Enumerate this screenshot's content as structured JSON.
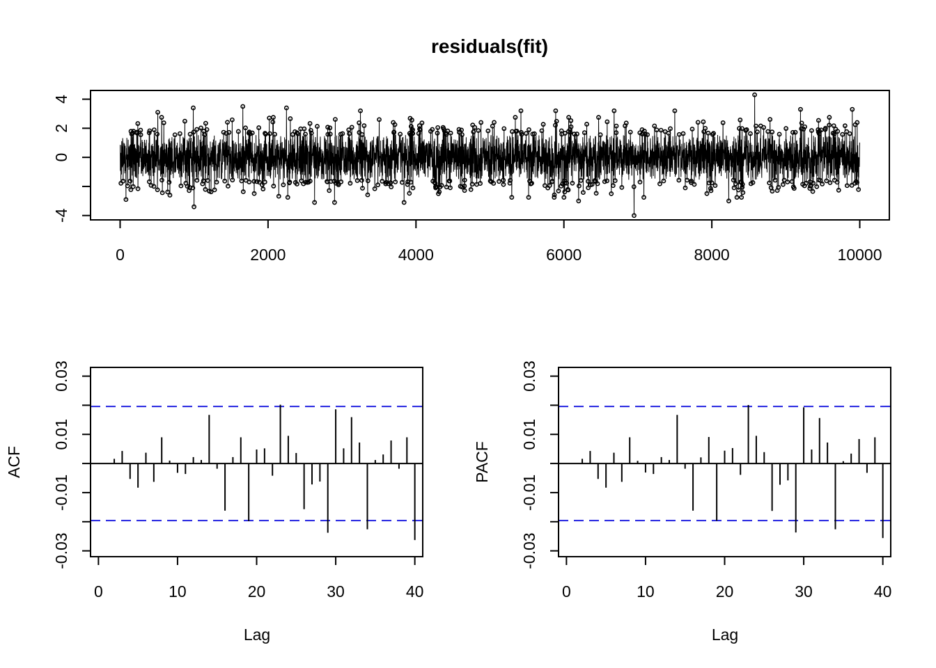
{
  "chart_data": [
    {
      "type": "line",
      "title": "residuals(fit)",
      "xlabel": "",
      "ylabel": "",
      "x_ticks": [
        0,
        2000,
        4000,
        6000,
        8000,
        10000
      ],
      "y_ticks": [
        -4,
        -2,
        0,
        2,
        4
      ],
      "y_tick_labels": [
        "-4",
        "",
        "0",
        "2",
        "4"
      ],
      "xlim": [
        -400,
        10400
      ],
      "ylim": [
        -4.3,
        4.6
      ],
      "n": 10000,
      "summary": "residual series of 10000 points fluctuating around 0, mostly within about -2.5 to 2.5",
      "extremes": [
        {
          "x": 80,
          "y": -2.9
        },
        {
          "x": 510,
          "y": 3.1
        },
        {
          "x": 990,
          "y": 3.4
        },
        {
          "x": 1000,
          "y": -3.4
        },
        {
          "x": 1660,
          "y": 3.5
        },
        {
          "x": 2250,
          "y": 3.4
        },
        {
          "x": 2630,
          "y": -3.1
        },
        {
          "x": 2900,
          "y": -3.1
        },
        {
          "x": 3250,
          "y": 3.2
        },
        {
          "x": 3840,
          "y": -3.1
        },
        {
          "x": 5420,
          "y": 3.2
        },
        {
          "x": 5890,
          "y": 3.2
        },
        {
          "x": 6200,
          "y": -3.0
        },
        {
          "x": 6680,
          "y": 3.2
        },
        {
          "x": 6950,
          "y": -4.0
        },
        {
          "x": 7500,
          "y": 3.2
        },
        {
          "x": 8230,
          "y": -3.0
        },
        {
          "x": 8580,
          "y": 4.3
        },
        {
          "x": 9200,
          "y": 3.3
        },
        {
          "x": 9900,
          "y": 3.3
        }
      ]
    },
    {
      "type": "bar",
      "title": "",
      "xlabel": "Lag",
      "ylabel": "ACF",
      "x_ticks": [
        0,
        10,
        20,
        30,
        40
      ],
      "y_ticks": [
        -0.03,
        -0.02,
        -0.01,
        0,
        0.01,
        0.02,
        0.03
      ],
      "y_tick_labels": [
        "-0.03",
        "",
        "-0.01",
        "",
        "0.01",
        "",
        "0.03"
      ],
      "xlim": [
        -1,
        41
      ],
      "ylim": [
        -0.032,
        0.033
      ],
      "confidence_bounds": [
        -0.0196,
        0.0196
      ],
      "lags": [
        1,
        2,
        3,
        4,
        5,
        6,
        7,
        8,
        9,
        10,
        11,
        12,
        13,
        14,
        15,
        16,
        17,
        18,
        19,
        20,
        21,
        22,
        23,
        24,
        25,
        26,
        27,
        28,
        29,
        30,
        31,
        32,
        33,
        34,
        35,
        36,
        37,
        38,
        39,
        40
      ],
      "values": [
        0.0,
        0.0016,
        0.0043,
        -0.0053,
        -0.0083,
        0.0037,
        -0.0063,
        0.009,
        0.001,
        -0.0032,
        -0.0036,
        0.0022,
        0.0012,
        0.0167,
        -0.0018,
        -0.0162,
        0.0022,
        0.009,
        -0.0198,
        0.0048,
        0.0052,
        -0.0042,
        0.0202,
        0.0095,
        0.0036,
        -0.0157,
        -0.0072,
        -0.0062,
        -0.0238,
        0.0186,
        0.0052,
        0.0159,
        0.0072,
        -0.0226,
        0.0012,
        0.0031,
        0.0079,
        -0.0018,
        0.009,
        -0.0263
      ]
    },
    {
      "type": "bar",
      "title": "",
      "xlabel": "Lag",
      "ylabel": "PACF",
      "x_ticks": [
        0,
        10,
        20,
        30,
        40
      ],
      "y_ticks": [
        -0.03,
        -0.02,
        -0.01,
        0,
        0.01,
        0.02,
        0.03
      ],
      "y_tick_labels": [
        "-0.03",
        "",
        "-0.01",
        "",
        "0.01",
        "",
        "0.03"
      ],
      "xlim": [
        -1,
        41
      ],
      "ylim": [
        -0.032,
        0.033
      ],
      "confidence_bounds": [
        -0.0196,
        0.0196
      ],
      "lags": [
        1,
        2,
        3,
        4,
        5,
        6,
        7,
        8,
        9,
        10,
        11,
        12,
        13,
        14,
        15,
        16,
        17,
        18,
        19,
        20,
        21,
        22,
        23,
        24,
        25,
        26,
        27,
        28,
        29,
        30,
        31,
        32,
        33,
        34,
        35,
        36,
        37,
        38,
        39,
        40
      ],
      "values": [
        0.0,
        0.0016,
        0.0043,
        -0.0053,
        -0.0083,
        0.0037,
        -0.0063,
        0.009,
        0.0009,
        -0.0031,
        -0.0036,
        0.0022,
        0.0012,
        0.0167,
        -0.0018,
        -0.0162,
        0.0021,
        0.0091,
        -0.0197,
        0.0044,
        0.0053,
        -0.0039,
        0.0201,
        0.0095,
        0.0039,
        -0.0163,
        -0.0073,
        -0.0058,
        -0.0237,
        0.0193,
        0.0048,
        0.0156,
        0.0072,
        -0.0226,
        0.0008,
        0.0034,
        0.0084,
        -0.0032,
        0.009,
        -0.0256
      ]
    }
  ]
}
